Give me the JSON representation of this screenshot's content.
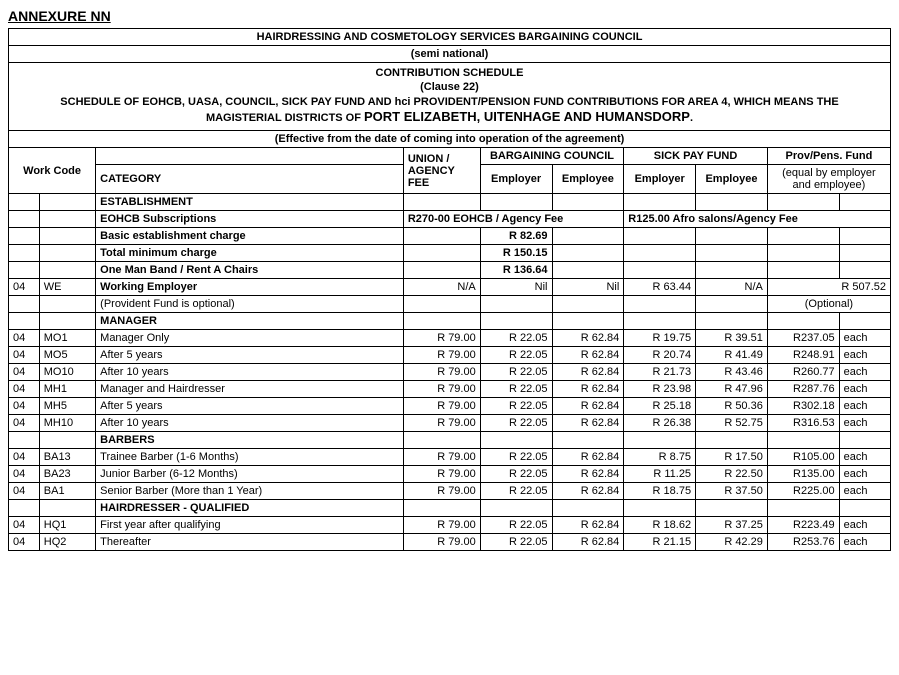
{
  "annex_title": "ANNEXURE NN",
  "header_lines": {
    "org": "HAIRDRESSING AND COSMETOLOGY SERVICES BARGAINING COUNCIL",
    "semi": "(semi national)",
    "sched": "CONTRIBUTION SCHEDULE",
    "clause": "(Clause 22)",
    "desc1": "SCHEDULE OF EOHCB, UASA, COUNCIL, SICK PAY FUND AND hci PROVIDENT/PENSION FUND CONTRIBUTIONS FOR AREA 4, WHICH MEANS THE",
    "desc2_a": "MAGISTERIAL DISTRICTS OF ",
    "desc2_b": "PORT ELIZABETH, UITENHAGE AND HUMANSDORP",
    "desc2_c": ".",
    "effective": "(Effective from the date of coming into operation of the agreement)"
  },
  "col_heads": {
    "work_code": "Work Code",
    "category": "CATEGORY",
    "union_fee": "UNION / AGENCY FEE",
    "barg_council": "BARGAINING COUNCIL",
    "sick_pay": "SICK PAY FUND",
    "prov_pens": "Prov/Pens. Fund",
    "employer": "Employer",
    "employee": "Employee",
    "equal": "(equal by employer and employee)"
  },
  "sections": {
    "establishment": "ESTABLISHMENT",
    "eohcb_subs": "EOHCB Subscriptions",
    "eohcb_fee": "R270-00 EOHCB / Agency Fee",
    "afro_fee": "R125.00 Afro salons/Agency Fee",
    "basic_charge": "Basic establishment charge",
    "basic_val": "R 82.69",
    "total_min": "Total minimum charge",
    "total_val": "R 150.15",
    "one_man": "One Man Band / Rent A Chairs",
    "one_man_val": "R 136.64",
    "working_emp": "Working Employer",
    "prov_optional": "(Provident Fund is optional)",
    "optional": "(Optional)",
    "manager": "MANAGER",
    "barbers": "BARBERS",
    "hairdresser_q": "HAIRDRESSER -  QUALIFIED"
  },
  "we_row": {
    "pre": "04",
    "code": "WE",
    "union": "N/A",
    "bc_er": "Nil",
    "bc_ee": "Nil",
    "sp_er": "R 63.44",
    "sp_ee": "N/A",
    "pens": "R 507.52"
  },
  "rows": [
    {
      "pre": "04",
      "code": "MO1",
      "cat": "Manager Only",
      "u": "R 79.00",
      "bce": "R 22.05",
      "bcee": "R 62.84",
      "spe": "R 19.75",
      "spee": "R 39.51",
      "pens": "R237.05",
      "each": "each"
    },
    {
      "pre": "04",
      "code": "MO5",
      "cat": "After 5 years",
      "u": "R 79.00",
      "bce": "R 22.05",
      "bcee": "R 62.84",
      "spe": "R 20.74",
      "spee": "R 41.49",
      "pens": "R248.91",
      "each": "each"
    },
    {
      "pre": "04",
      "code": "MO10",
      "cat": "After 10 years",
      "u": "R 79.00",
      "bce": "R 22.05",
      "bcee": "R 62.84",
      "spe": "R 21.73",
      "spee": "R 43.46",
      "pens": "R260.77",
      "each": "each"
    },
    {
      "pre": "04",
      "code": "MH1",
      "cat": "Manager and Hairdresser",
      "u": "R 79.00",
      "bce": "R 22.05",
      "bcee": "R 62.84",
      "spe": "R 23.98",
      "spee": "R 47.96",
      "pens": "R287.76",
      "each": "each"
    },
    {
      "pre": "04",
      "code": "MH5",
      "cat": "After 5 years",
      "u": "R 79.00",
      "bce": "R 22.05",
      "bcee": "R 62.84",
      "spe": "R 25.18",
      "spee": "R 50.36",
      "pens": "R302.18",
      "each": "each"
    },
    {
      "pre": "04",
      "code": "MH10",
      "cat": "After 10 years",
      "u": "R 79.00",
      "bce": "R 22.05",
      "bcee": "R 62.84",
      "spe": "R 26.38",
      "spee": "R 52.75",
      "pens": "R316.53",
      "each": "each"
    }
  ],
  "barber_rows": [
    {
      "pre": "04",
      "code": "BA13",
      "cat": "Trainee Barber (1-6 Months)",
      "u": "R 79.00",
      "bce": "R 22.05",
      "bcee": "R 62.84",
      "spe": "R 8.75",
      "spee": "R 17.50",
      "pens": "R105.00",
      "each": "each"
    },
    {
      "pre": "04",
      "code": "BA23",
      "cat": "Junior Barber (6-12 Months)",
      "u": "R 79.00",
      "bce": "R 22.05",
      "bcee": "R 62.84",
      "spe": "R 11.25",
      "spee": "R 22.50",
      "pens": "R135.00",
      "each": "each"
    },
    {
      "pre": "04",
      "code": "BA1",
      "cat": "Senior Barber (More than 1 Year)",
      "u": "R 79.00",
      "bce": "R 22.05",
      "bcee": "R 62.84",
      "spe": "R 18.75",
      "spee": "R 37.50",
      "pens": "R225.00",
      "each": "each"
    }
  ],
  "hq_rows": [
    {
      "pre": "04",
      "code": "HQ1",
      "cat": "First year after qualifying",
      "u": "R 79.00",
      "bce": "R 22.05",
      "bcee": "R 62.84",
      "spe": "R 18.62",
      "spee": "R 37.25",
      "pens": "R223.49",
      "each": "each"
    },
    {
      "pre": "04",
      "code": "HQ2",
      "cat": "Thereafter",
      "u": "R 79.00",
      "bce": "R 22.05",
      "bcee": "R 62.84",
      "spe": "R 21.15",
      "spee": "R 42.29",
      "pens": "R253.76",
      "each": "each"
    }
  ]
}
